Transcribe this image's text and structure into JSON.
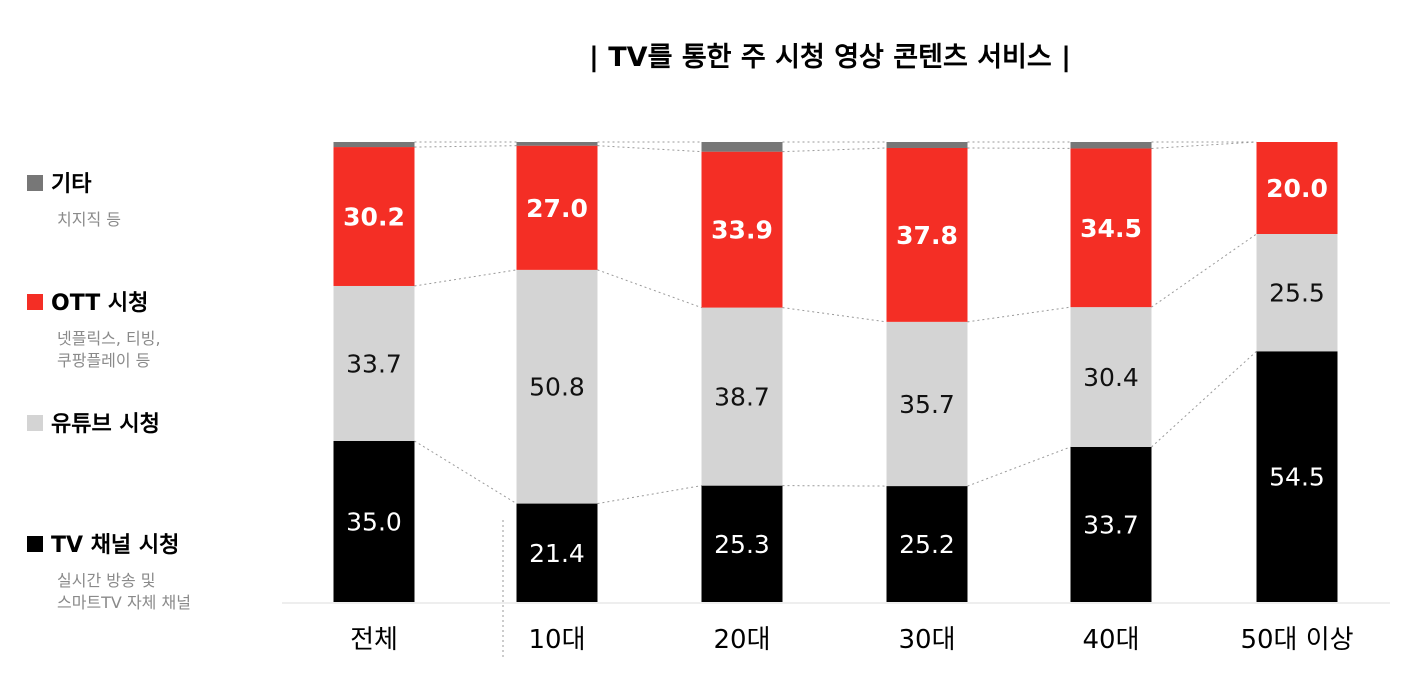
{
  "chart_data": {
    "type": "bar",
    "stacked": true,
    "title": "| TV를 통한 주 시청 영상 콘텐츠 서비스 |",
    "categories": [
      "전체",
      "10대",
      "20대",
      "30대",
      "40대",
      "50대 이상"
    ],
    "series": [
      {
        "name": "TV 채널 시청",
        "values": [
          35.0,
          21.4,
          25.3,
          25.2,
          33.7,
          54.5
        ],
        "color": "#000000",
        "label_color": "#ffffff",
        "description": [
          "실시간 방송 및",
          "스마트TV 자체 채널"
        ]
      },
      {
        "name": "유튜브 시청",
        "values": [
          33.7,
          50.8,
          38.7,
          35.7,
          30.4,
          25.5
        ],
        "color": "#d4d4d4",
        "label_color": "#111111",
        "description": []
      },
      {
        "name": "OTT 시청",
        "values": [
          30.2,
          27.0,
          33.9,
          37.8,
          34.5,
          20.0
        ],
        "color": "#f42e25",
        "label_color": "#ffffff",
        "description": [
          "넷플릭스, 티빙,",
          "쿠팡플레이 등"
        ]
      },
      {
        "name": "기타",
        "values": [
          1.1,
          0.8,
          2.1,
          1.3,
          1.4,
          0.0
        ],
        "color": "#777777",
        "label_color": "#ffffff",
        "description": [
          "치지직 등"
        ]
      }
    ],
    "value_labels": [
      [
        "35.0",
        "21.4",
        "25.3",
        "25.2",
        "33.7",
        "54.5"
      ],
      [
        "33.7",
        "50.8",
        "38.7",
        "35.7",
        "30.4",
        "25.5"
      ],
      [
        "30.2",
        "27.0",
        "33.9",
        "37.8",
        "34.5",
        "20.0"
      ],
      [
        "",
        "",
        "",
        "",
        "",
        ""
      ]
    ],
    "ylim": [
      0,
      100
    ],
    "grid": false,
    "legend_position": "left",
    "connector_lines": "dotted"
  }
}
